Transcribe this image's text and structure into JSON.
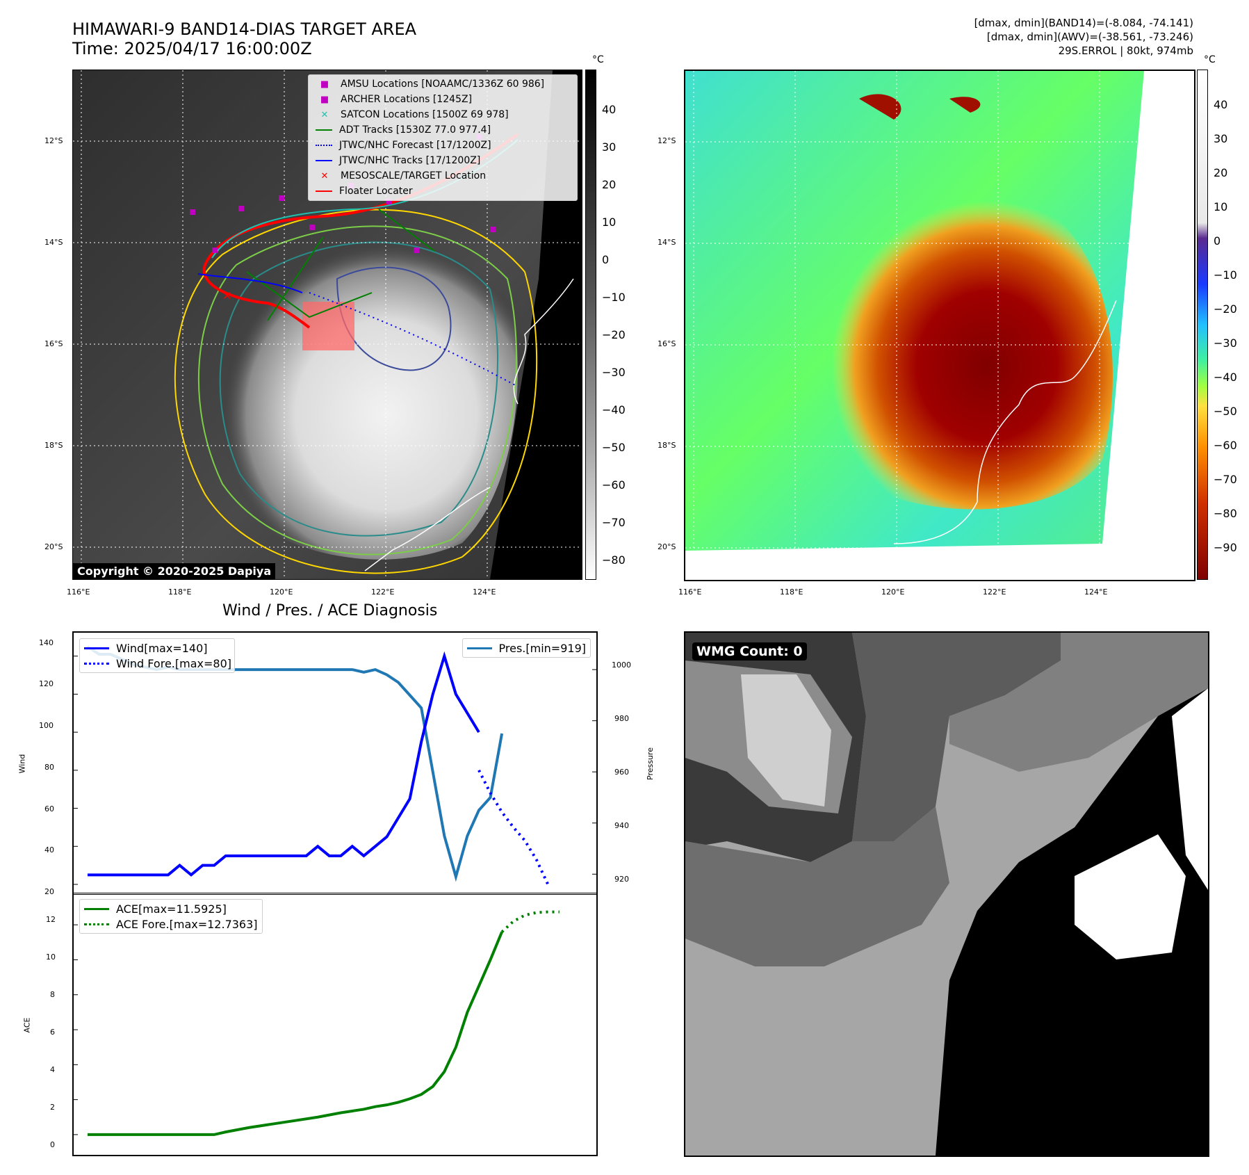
{
  "panel1": {
    "title_line1": "HIMAWARI-9 BAND14-DIAS TARGET AREA",
    "title_line2": "Time: 2025/04/17 16:00:00Z",
    "copyright": "Copyright © 2020-2025 Dapiya",
    "lat_ticks": [
      "12°S",
      "14°S",
      "16°S",
      "18°S",
      "20°S"
    ],
    "lon_ticks": [
      "116°E",
      "118°E",
      "120°E",
      "122°E",
      "124°E"
    ],
    "cb_unit": "°C",
    "cb_ticks": [
      "40",
      "30",
      "20",
      "10",
      "0",
      "−10",
      "−20",
      "−30",
      "−40",
      "−50",
      "−60",
      "−70",
      "−80"
    ],
    "legend": [
      {
        "label": "AMSU Locations [NOAAMC/1336Z 60 986]",
        "color": "#c000c0",
        "marker": "■"
      },
      {
        "label": "ARCHER Locations [1245Z]",
        "color": "#c000c0",
        "marker": "■"
      },
      {
        "label": "SATCON Locations [1500Z 69 978]",
        "color": "#20c0b0",
        "marker": "✕"
      },
      {
        "label": "ADT Tracks [1530Z 77.0 977.4]",
        "color": "#008000",
        "marker": "line"
      },
      {
        "label": "JTWC/NHC Forecast [17/1200Z]",
        "color": "#0000ff",
        "marker": "dotted"
      },
      {
        "label": "JTWC/NHC Tracks [17/1200Z]",
        "color": "#0000ff",
        "marker": "line-dot"
      },
      {
        "label": "MESOSCALE/TARGET Location",
        "color": "#ff0000",
        "marker": "✕"
      },
      {
        "label": "Floater Locater",
        "color": "#ff0000",
        "marker": "line"
      }
    ]
  },
  "panel2": {
    "info_line1": "[dmax, dmin](BAND14)=(-8.084, -74.141)",
    "info_line2": "[dmax, dmin](AWV)=(-38.561, -73.246)",
    "info_line3": "29S.ERROL | 80kt, 974mb",
    "lat_ticks": [
      "12°S",
      "14°S",
      "16°S",
      "18°S",
      "20°S"
    ],
    "lon_ticks": [
      "116°E",
      "118°E",
      "120°E",
      "122°E",
      "124°E"
    ],
    "cb_unit": "°C",
    "cb_ticks": [
      "40",
      "30",
      "20",
      "10",
      "0",
      "−10",
      "−20",
      "−30",
      "−40",
      "−50",
      "−60",
      "−70",
      "−80",
      "−90"
    ]
  },
  "panel3": {
    "title": "Wind / Pres. / ACE Diagnosis",
    "wind_ylabel": "Wind",
    "pres_ylabel": "Pressure",
    "ace_ylabel": "ACE",
    "wind_ticks": [
      "140",
      "120",
      "100",
      "80",
      "60",
      "40",
      "20"
    ],
    "pres_ticks": [
      "1000",
      "980",
      "960",
      "940",
      "920"
    ],
    "ace_ticks": [
      "12",
      "10",
      "8",
      "6",
      "4",
      "2",
      "0"
    ],
    "legend_wind": [
      {
        "label": "Wind[max=140]",
        "color": "#0000ff",
        "style": "solid"
      },
      {
        "label": "Wind Fore.[max=80]",
        "color": "#0000ff",
        "style": "dotted"
      }
    ],
    "legend_pres": [
      {
        "label": "Pres.[min=919]",
        "color": "#1f77b4",
        "style": "solid"
      }
    ],
    "legend_ace": [
      {
        "label": "ACE[max=11.5925]",
        "color": "#008000",
        "style": "solid"
      },
      {
        "label": "ACE Fore.[max=12.7363]",
        "color": "#008000",
        "style": "dotted"
      }
    ]
  },
  "panel4": {
    "badge": "WMG Count: 0"
  },
  "chart_data": [
    {
      "type": "line",
      "title": "Wind / Pres. / ACE Diagnosis",
      "ylabel": "Wind",
      "ylim": [
        20,
        145
      ],
      "series": [
        {
          "name": "Wind[max=140]",
          "x": [
            0,
            1,
            2,
            3,
            4,
            5,
            6,
            7,
            8,
            9,
            10,
            11,
            12,
            13,
            14,
            15,
            16,
            17,
            18,
            19,
            20,
            21,
            22,
            23,
            24,
            25,
            26,
            27,
            28,
            29,
            30,
            31,
            32,
            33,
            34
          ],
          "values": [
            25,
            25,
            25,
            25,
            25,
            25,
            25,
            25,
            30,
            25,
            30,
            30,
            35,
            35,
            35,
            35,
            35,
            35,
            35,
            35,
            40,
            35,
            35,
            40,
            35,
            40,
            45,
            55,
            65,
            95,
            120,
            140,
            120,
            110,
            100
          ]
        },
        {
          "name": "Wind Fore.[max=80]",
          "x": [
            34,
            35,
            36,
            37,
            38,
            39,
            40
          ],
          "values": [
            80,
            68,
            58,
            50,
            43,
            33,
            20
          ]
        }
      ]
    },
    {
      "type": "line",
      "ylabel": "Pressure",
      "ylim": [
        916,
        1009
      ],
      "series": [
        {
          "name": "Pres.[min=919]",
          "x": [
            0,
            1,
            2,
            3,
            4,
            5,
            6,
            7,
            8,
            9,
            10,
            11,
            12,
            13,
            14,
            15,
            16,
            17,
            18,
            19,
            20,
            21,
            22,
            23,
            24,
            25,
            26,
            27,
            28,
            29,
            30,
            31,
            32,
            33,
            34,
            35,
            36
          ],
          "values": [
            1009,
            1006,
            1006,
            1004,
            1002,
            1001,
            1000,
            1001,
            1000,
            1000,
            1000,
            1000,
            1000,
            1000,
            1000,
            1000,
            1000,
            1000,
            1000,
            1000,
            1000,
            1000,
            1000,
            1000,
            999,
            1000,
            998,
            995,
            990,
            985,
            960,
            935,
            919,
            935,
            945,
            950,
            975
          ]
        }
      ]
    },
    {
      "type": "line",
      "ylabel": "ACE",
      "ylim": [
        -0.6,
        13
      ],
      "series": [
        {
          "name": "ACE[max=11.5925]",
          "x": [
            0,
            2,
            4,
            6,
            8,
            10,
            11,
            12,
            14,
            16,
            18,
            20,
            22,
            23,
            24,
            25,
            26,
            27,
            28,
            29,
            30,
            31,
            32,
            33,
            34,
            35,
            36
          ],
          "values": [
            0,
            0,
            0,
            0,
            0,
            0,
            0,
            0.15,
            0.4,
            0.6,
            0.8,
            1.0,
            1.25,
            1.35,
            1.45,
            1.6,
            1.7,
            1.85,
            2.05,
            2.3,
            2.75,
            3.6,
            5.0,
            7.0,
            8.5,
            10.0,
            11.5925
          ]
        },
        {
          "name": "ACE Fore.[max=12.7363]",
          "x": [
            36,
            37,
            38,
            39,
            40,
            41
          ],
          "values": [
            11.5925,
            12.2,
            12.55,
            12.7,
            12.7363,
            12.7363
          ]
        }
      ]
    }
  ]
}
